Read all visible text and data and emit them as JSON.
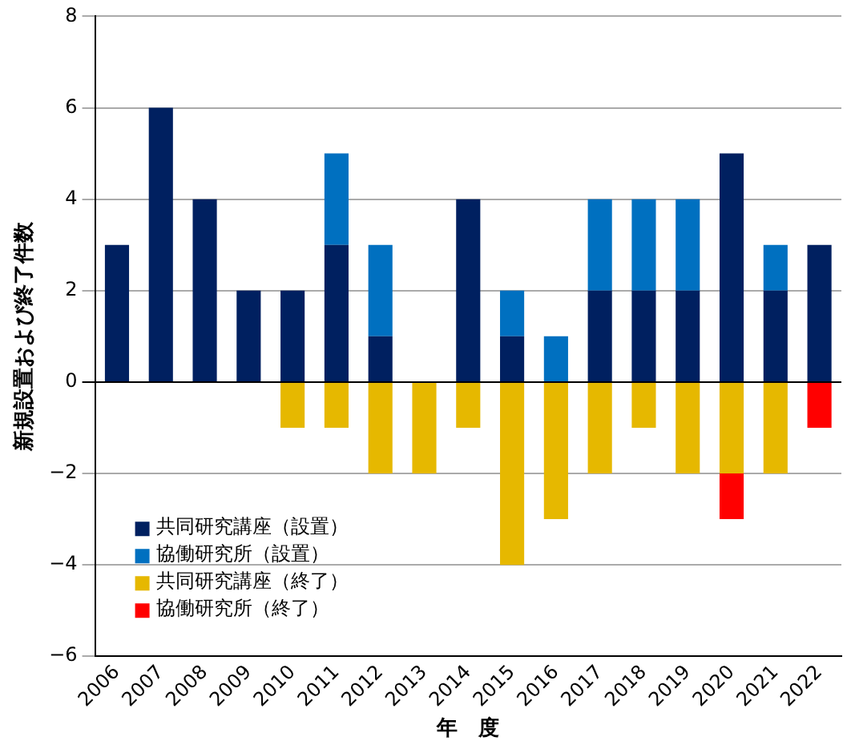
{
  "chart_data": {
    "type": "bar",
    "stacked": true,
    "xlabel": "年　度",
    "ylabel": "新規設置および終了件数",
    "categories": [
      "2006",
      "2007",
      "2008",
      "2009",
      "2010",
      "2011",
      "2012",
      "2013",
      "2014",
      "2015",
      "2016",
      "2017",
      "2018",
      "2019",
      "2020",
      "2021",
      "2022"
    ],
    "series": [
      {
        "name": "共同研究講座（設置）",
        "color": "#002060",
        "values": [
          3,
          6,
          4,
          2,
          2,
          3,
          1,
          0,
          4,
          1,
          0,
          2,
          2,
          2,
          5,
          2,
          3
        ]
      },
      {
        "name": "協働研究所（設置）",
        "color": "#0070c0",
        "values": [
          0,
          0,
          0,
          0,
          0,
          2,
          2,
          0,
          0,
          1,
          1,
          2,
          2,
          2,
          0,
          1,
          0
        ]
      },
      {
        "name": "共同研究講座（終了）",
        "color": "#e6b800",
        "values": [
          0,
          0,
          0,
          0,
          -1,
          -1,
          -2,
          -2,
          -1,
          -4,
          -3,
          -2,
          -1,
          -2,
          -2,
          -2,
          0
        ]
      },
      {
        "name": "協働研究所（終了）",
        "color": "#ff0000",
        "values": [
          0,
          0,
          0,
          0,
          0,
          0,
          0,
          0,
          0,
          0,
          0,
          0,
          0,
          0,
          -1,
          0,
          -1
        ]
      }
    ],
    "ylim": [
      -6,
      8
    ],
    "yticks": [
      {
        "value": -6,
        "label": "−6"
      },
      {
        "value": -4,
        "label": "−4"
      },
      {
        "value": -2,
        "label": "−2"
      },
      0,
      2,
      4,
      6,
      8
    ],
    "grid": "y",
    "legend": "bottom left"
  }
}
